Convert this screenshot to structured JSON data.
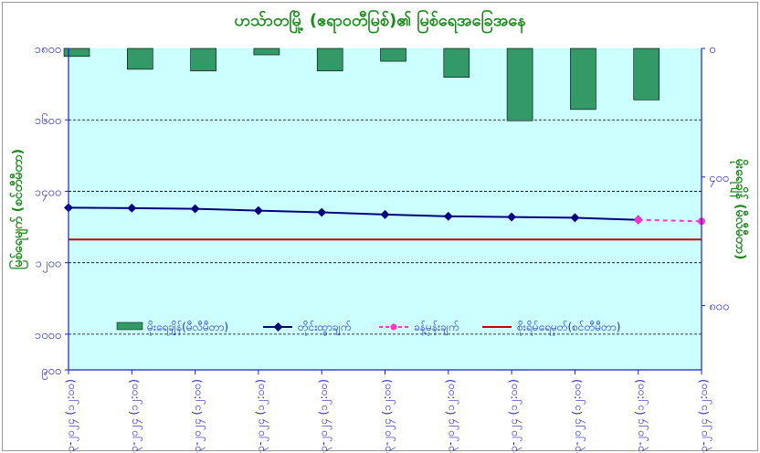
{
  "chart_data": {
    "type": "bar+line",
    "title": "ဟသ်ာတမြို့ (ဧရာဝတီမြစ်)၏ မြစ်ရေအခြေအနေ",
    "ylabel_left": "မြစ်ရေမျက် (စင်တီမီတာ)",
    "ylabel_right": "မိုးရေချိန် (မီလီမီတာ)",
    "left_axis": {
      "ylim": [
        900,
        1800
      ],
      "ticks": [
        1800,
        1600,
        1400,
        1200,
        1000,
        900
      ],
      "tick_labels": [
        "၁၈၀၀",
        "၁၆၀၀",
        "၁၄၀၀",
        "၁၂၀၀",
        "၁၀၀၀",
        "၉၀၀"
      ]
    },
    "right_axis": {
      "ylim": [
        0,
        1000
      ],
      "inverted": true,
      "ticks": [
        0,
        400,
        800
      ],
      "tick_labels": [
        "၀",
        "၄၀၀",
        "၈၀၀"
      ]
    },
    "categories": [
      "၁၉-၃-၂၀၂၄ (၁၂:၀၀)",
      "၂၀-၃-၂၀၂၄ (၁၂:၀၀)",
      "၂၁-၃-၂၀၂၄ (၁၂:၀၀)",
      "၂၂-၃-၂၀၂၄ (၁၂:၀၀)",
      "၂၃-၃-၂၀၂၄ (၁၂:၀၀)",
      "၂၄-၃-၂၀၂၄ (၁၂:၀၀)",
      "၂၅-၃-၂၀၂၄ (၁၂:၀၀)",
      "၂၆-၃-၂၀၂၄ (၁၂:၀၀)",
      "၂၇-၃-၂၀၂၄ (၁၂:၀၀)",
      "၂၈-၃-၂၀၂၄ (၁၂:၀၀)",
      "၂၉-၃-၂၀၂၄ (၁၂:၀၀)"
    ],
    "series": [
      {
        "name": "မိုးရေချိန်(မီလီမီတာ)",
        "type": "bar",
        "axis": "right",
        "color": "#339966",
        "values": [
          25,
          65,
          70,
          20,
          70,
          40,
          90,
          225,
          190,
          160,
          null
        ]
      },
      {
        "name": "တိုင်းထွာချက်",
        "type": "line",
        "axis": "left",
        "color": "#000080",
        "values": [
          1354,
          1353,
          1351,
          1346,
          1341,
          1335,
          1330,
          1328,
          1326,
          1320,
          null
        ]
      },
      {
        "name": "ခန့်မှန်းချက်",
        "type": "line-dashed",
        "axis": "left",
        "color": "#ff33cc",
        "values": [
          null,
          null,
          null,
          null,
          null,
          null,
          null,
          null,
          null,
          1320,
          1316
        ]
      },
      {
        "name": "စိုးရိမ်ရေမှတ်(စင်တီမီတာ)",
        "type": "hline",
        "axis": "left",
        "color": "#cc0000",
        "value": 1265
      }
    ],
    "grid": true,
    "legend_position": "inside-bottom",
    "plot_background": "#ccffff"
  }
}
